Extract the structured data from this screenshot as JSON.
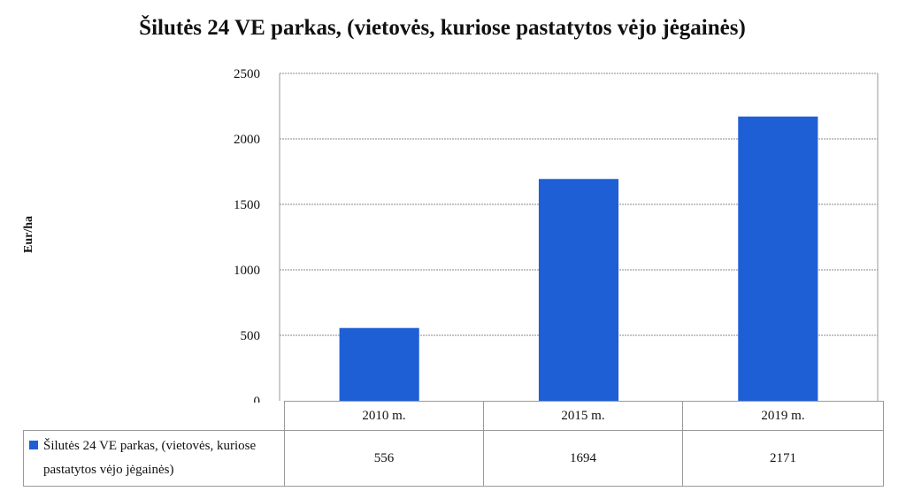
{
  "chart_data": {
    "type": "bar",
    "title": "Šilutės 24 VE parkas, (vietovės, kuriose pastatytos vėjo jėgainės)",
    "ylabel": "Eur/ha",
    "xlabel": "",
    "categories": [
      "2010 m.",
      "2015 m.",
      "2019 m."
    ],
    "series": [
      {
        "name": "Šilutės 24 VE parkas, (vietovės, kuriose pastatytos vėjo jėgainės)",
        "name_line1": "Šilutės 24 VE parkas, (vietovės, kuriose",
        "name_line2": "pastatytos vėjo jėgainės)",
        "values": [
          556,
          1694,
          2171
        ],
        "value_labels": [
          "556",
          "1694",
          "2171"
        ],
        "color": "#1f5fd6"
      }
    ],
    "ylim": [
      0,
      2500
    ],
    "yticks": [
      "0",
      "500",
      "1000",
      "1500",
      "2000",
      "2500"
    ],
    "grid": true,
    "legend": "data-table"
  }
}
